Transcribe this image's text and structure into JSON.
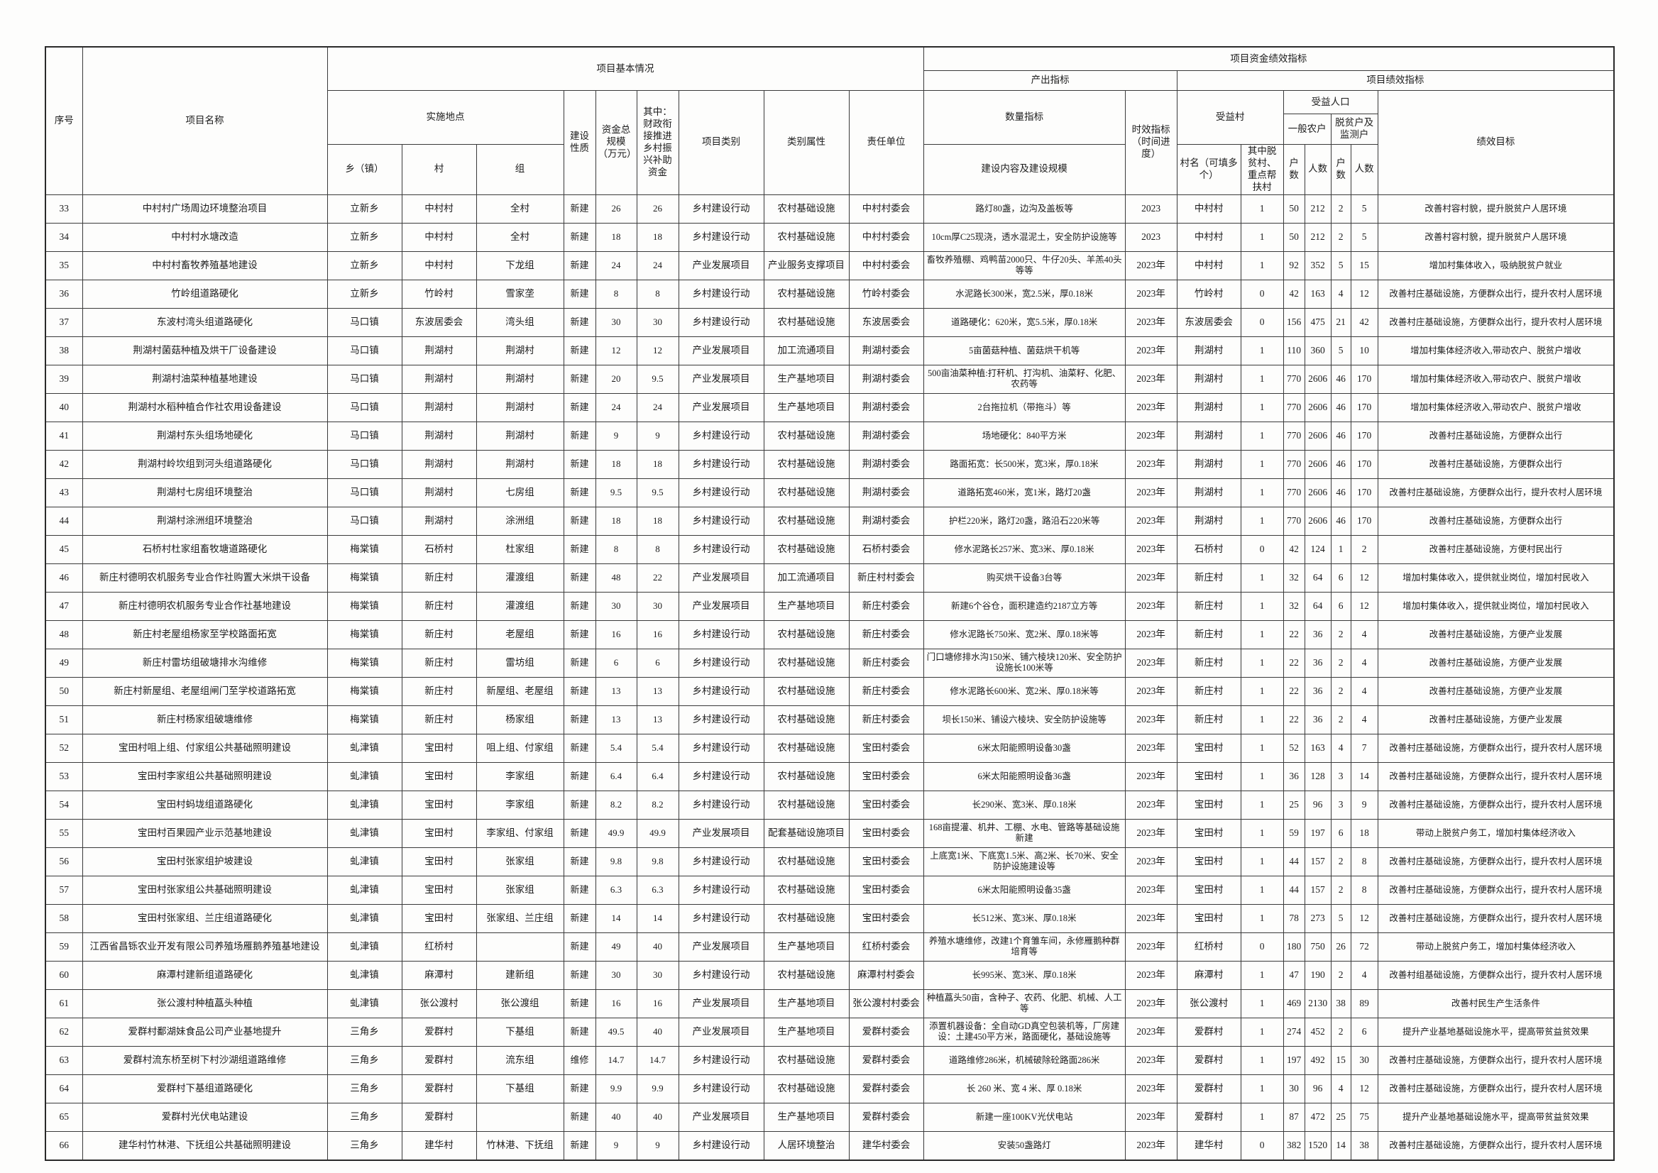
{
  "header": {
    "seq": "序号",
    "project_name": "项目名称",
    "basic_info": "项目基本情况",
    "fund_perf": "项目资金绩效指标",
    "output_ind": "产出指标",
    "perf_ind": "项目绩效指标",
    "location": "实施地点",
    "build_nature": "建设性质",
    "total_fund": "资金总规模（万元）",
    "subsidy": "其中：财政衔接推进乡村振兴补助资金",
    "category": "项目类别",
    "attr": "类别属性",
    "resp_unit": "责任单位",
    "qty_ind": "数量指标",
    "time_ind": "时效指标（时间进度）",
    "benefit_village": "受益村",
    "benefit_pop": "受益人口",
    "perf_goal": "绩效目标",
    "general_farmers": "一般农户",
    "poverty_households": "脱贫户及监测户",
    "township": "乡（镇）",
    "village": "村",
    "group": "组",
    "content": "建设内容及建设规模",
    "village_names": "村名（可填多个）",
    "poverty_flag": "其中脱贫村、重点帮扶村",
    "households": "户数",
    "persons": "人数"
  },
  "columns": [
    {
      "key": "seq"
    },
    {
      "key": "project_name"
    },
    {
      "key": "township"
    },
    {
      "key": "village"
    },
    {
      "key": "group"
    },
    {
      "key": "build_nature"
    },
    {
      "key": "total_fund"
    },
    {
      "key": "subsidy"
    },
    {
      "key": "category"
    },
    {
      "key": "attr"
    },
    {
      "key": "resp_unit"
    },
    {
      "key": "content"
    },
    {
      "key": "time_ind"
    },
    {
      "key": "village_names"
    },
    {
      "key": "poverty_flag"
    },
    {
      "key": "general_households"
    },
    {
      "key": "general_persons"
    },
    {
      "key": "poverty_households"
    },
    {
      "key": "poverty_persons"
    },
    {
      "key": "perf_goal"
    }
  ],
  "rows": [
    [
      "33",
      "中村村广场周边环境整治项目",
      "立新乡",
      "中村村",
      "全村",
      "新建",
      "26",
      "26",
      "乡村建设行动",
      "农村基础设施",
      "中村村委会",
      "路灯80盏，边沟及盖板等",
      "2023",
      "中村村",
      "1",
      "50",
      "212",
      "2",
      "5",
      "改善村容村貌，提升脱贫户人居环境"
    ],
    [
      "34",
      "中村村水塘改造",
      "立新乡",
      "中村村",
      "全村",
      "新建",
      "18",
      "18",
      "乡村建设行动",
      "农村基础设施",
      "中村村委会",
      "10cm厚C25现浇，透水混泥土，安全防护设施等",
      "2023",
      "中村村",
      "1",
      "50",
      "212",
      "2",
      "5",
      "改善村容村貌，提升脱贫户人居环境"
    ],
    [
      "35",
      "中村村畜牧养殖基地建设",
      "立新乡",
      "中村村",
      "下龙组",
      "新建",
      "24",
      "24",
      "产业发展项目",
      "产业服务支撑项目",
      "中村村委会",
      "畜牧养殖棚、鸡鸭苗2000只、牛仔20头、羊羔40头等等",
      "2023年",
      "中村村",
      "1",
      "92",
      "352",
      "5",
      "15",
      "增加村集体收入，吸纳脱贫户就业"
    ],
    [
      "36",
      "竹岭组道路硬化",
      "立新乡",
      "竹岭村",
      "雪家垄",
      "新建",
      "8",
      "8",
      "乡村建设行动",
      "农村基础设施",
      "竹岭村委会",
      "水泥路长300米，宽2.5米，厚0.18米",
      "2023年",
      "竹岭村",
      "0",
      "42",
      "163",
      "4",
      "12",
      "改善村庄基础设施，方便群众出行，提升农村人居环境"
    ],
    [
      "37",
      "东波村湾头组道路硬化",
      "马口镇",
      "东波居委会",
      "湾头组",
      "新建",
      "30",
      "30",
      "乡村建设行动",
      "农村基础设施",
      "东波居委会",
      "道路硬化：620米，宽5.5米，厚0.18米",
      "2023年",
      "东波居委会",
      "0",
      "156",
      "475",
      "21",
      "42",
      "改善村庄基础设施，方便群众出行，提升农村人居环境"
    ],
    [
      "38",
      "荆湖村菌菇种植及烘干厂设备建设",
      "马口镇",
      "荆湖村",
      "荆湖村",
      "新建",
      "12",
      "12",
      "产业发展项目",
      "加工流通项目",
      "荆湖村委会",
      "5亩菌菇种植、菌菇烘干机等",
      "2023年",
      "荆湖村",
      "1",
      "110",
      "360",
      "5",
      "10",
      "增加村集体经济收入,带动农户、脱贫户增收"
    ],
    [
      "39",
      "荆湖村油菜种植基地建设",
      "马口镇",
      "荆湖村",
      "荆湖村",
      "新建",
      "20",
      "9.5",
      "产业发展项目",
      "生产基地项目",
      "荆湖村委会",
      "500亩油菜种植:打秆机、打沟机、油菜籽、化肥、农药等",
      "2023年",
      "荆湖村",
      "1",
      "770",
      "2606",
      "46",
      "170",
      "增加村集体经济收入,带动农户、脱贫户增收"
    ],
    [
      "40",
      "荆湖村水稻种植合作社农用设备建设",
      "马口镇",
      "荆湖村",
      "荆湖村",
      "新建",
      "24",
      "24",
      "产业发展项目",
      "生产基地项目",
      "荆湖村委会",
      "2台拖拉机（带拖斗）等",
      "2023年",
      "荆湖村",
      "1",
      "770",
      "2606",
      "46",
      "170",
      "增加村集体经济收入,带动农户、脱贫户增收"
    ],
    [
      "41",
      "荆湖村东头组场地硬化",
      "马口镇",
      "荆湖村",
      "荆湖村",
      "新建",
      "9",
      "9",
      "乡村建设行动",
      "农村基础设施",
      "荆湖村委会",
      "场地硬化：840平方米",
      "2023年",
      "荆湖村",
      "1",
      "770",
      "2606",
      "46",
      "170",
      "改善村庄基础设施，方便群众出行"
    ],
    [
      "42",
      "荆湖村岭坎组到河头组道路硬化",
      "马口镇",
      "荆湖村",
      "荆湖村",
      "新建",
      "18",
      "18",
      "乡村建设行动",
      "农村基础设施",
      "荆湖村委会",
      "路面拓宽：长500米，宽3米，厚0.18米",
      "2023年",
      "荆湖村",
      "1",
      "770",
      "2606",
      "46",
      "170",
      "改善村庄基础设施，方便群众出行"
    ],
    [
      "43",
      "荆湖村七房组环境整治",
      "马口镇",
      "荆湖村",
      "七房组",
      "新建",
      "9.5",
      "9.5",
      "乡村建设行动",
      "农村基础设施",
      "荆湖村委会",
      "道路拓宽460米，宽1米，路灯20盏",
      "2023年",
      "荆湖村",
      "1",
      "770",
      "2606",
      "46",
      "170",
      "改善村庄基础设施，方便群众出行，提升农村人居环境"
    ],
    [
      "44",
      "荆湖村涂洲组环境整治",
      "马口镇",
      "荆湖村",
      "涂洲组",
      "新建",
      "18",
      "18",
      "乡村建设行动",
      "农村基础设施",
      "荆湖村委会",
      "护栏220米，路灯20盏，路沿石220米等",
      "2023年",
      "荆湖村",
      "1",
      "770",
      "2606",
      "46",
      "170",
      "改善村庄基础设施，方便群众出行"
    ],
    [
      "45",
      "石桥村杜家组畜牧塘道路硬化",
      "梅棠镇",
      "石桥村",
      "杜家组",
      "新建",
      "8",
      "8",
      "乡村建设行动",
      "农村基础设施",
      "石桥村委会",
      "修水泥路长257米、宽3米、厚0.18米",
      "2023年",
      "石桥村",
      "0",
      "42",
      "124",
      "1",
      "2",
      "改善村庄基础设施，方便村民出行"
    ],
    [
      "46",
      "新庄村德明农机服务专业合作社购置大米烘干设备",
      "梅棠镇",
      "新庄村",
      "灌渡组",
      "新建",
      "48",
      "22",
      "产业发展项目",
      "加工流通项目",
      "新庄村村委会",
      "购买烘干设备3台等",
      "2023年",
      "新庄村",
      "1",
      "32",
      "64",
      "6",
      "12",
      "增加村集体收入，提供就业岗位，增加村民收入"
    ],
    [
      "47",
      "新庄村德明农机服务专业合作社基地建设",
      "梅棠镇",
      "新庄村",
      "灌渡组",
      "新建",
      "30",
      "30",
      "产业发展项目",
      "生产基地项目",
      "新庄村委会",
      "新建6个谷仓，面积建造约2187立方等",
      "2023年",
      "新庄村",
      "1",
      "32",
      "64",
      "6",
      "12",
      "增加村集体收入，提供就业岗位，增加村民收入"
    ],
    [
      "48",
      "新庄村老屋组杨家至学校路面拓宽",
      "梅棠镇",
      "新庄村",
      "老屋组",
      "新建",
      "16",
      "16",
      "乡村建设行动",
      "农村基础设施",
      "新庄村委会",
      "修水泥路长750米、宽2米、厚0.18米等",
      "2023年",
      "新庄村",
      "1",
      "22",
      "36",
      "2",
      "4",
      "改善村庄基础设施，方便产业发展"
    ],
    [
      "49",
      "新庄村雷坊组破塘排水沟维修",
      "梅棠镇",
      "新庄村",
      "雷坊组",
      "新建",
      "6",
      "6",
      "乡村建设行动",
      "农村基础设施",
      "新庄村委会",
      "门口塘修排水沟150米、铺六棱块120米、安全防护设施长100米等",
      "2023年",
      "新庄村",
      "1",
      "22",
      "36",
      "2",
      "4",
      "改善村庄基础设施，方便产业发展"
    ],
    [
      "50",
      "新庄村新屋组、老屋组闸门至学校道路拓宽",
      "梅棠镇",
      "新庄村",
      "新屋组、老屋组",
      "新建",
      "13",
      "13",
      "乡村建设行动",
      "农村基础设施",
      "新庄村委会",
      "修水泥路长600米、宽2米、厚0.18米等",
      "2023年",
      "新庄村",
      "1",
      "22",
      "36",
      "2",
      "4",
      "改善村庄基础设施，方便产业发展"
    ],
    [
      "51",
      "新庄村杨家组破塘维修",
      "梅棠镇",
      "新庄村",
      "杨家组",
      "新建",
      "13",
      "13",
      "乡村建设行动",
      "农村基础设施",
      "新庄村委会",
      "坝长150米、铺设六棱块、安全防护设施等",
      "2023年",
      "新庄村",
      "1",
      "22",
      "36",
      "2",
      "4",
      "改善村庄基础设施，方便产业发展"
    ],
    [
      "52",
      "宝田村咀上组、付家组公共基础照明建设",
      "虬津镇",
      "宝田村",
      "咀上组、付家组",
      "新建",
      "5.4",
      "5.4",
      "乡村建设行动",
      "农村基础设施",
      "宝田村委会",
      "6米太阳能照明设备30盏",
      "2023年",
      "宝田村",
      "1",
      "52",
      "163",
      "4",
      "7",
      "改善村庄基础设施，方便群众出行，提升农村人居环境"
    ],
    [
      "53",
      "宝田村李家组公共基础照明建设",
      "虬津镇",
      "宝田村",
      "李家组",
      "新建",
      "6.4",
      "6.4",
      "乡村建设行动",
      "农村基础设施",
      "宝田村委会",
      "6米太阳能照明设备36盏",
      "2023年",
      "宝田村",
      "1",
      "36",
      "128",
      "3",
      "14",
      "改善村庄基础设施，方便群众出行，提升农村人居环境"
    ],
    [
      "54",
      "宝田村蚂垅组道路硬化",
      "虬津镇",
      "宝田村",
      "李家组",
      "新建",
      "8.2",
      "8.2",
      "乡村建设行动",
      "农村基础设施",
      "宝田村委会",
      "长290米、宽3米、厚0.18米",
      "2023年",
      "宝田村",
      "1",
      "25",
      "96",
      "3",
      "9",
      "改善村庄基础设施，方便群众出行，提升农村人居环境"
    ],
    [
      "55",
      "宝田村百果园产业示范基地建设",
      "虬津镇",
      "宝田村",
      "李家组、付家组",
      "新建",
      "49.9",
      "49.9",
      "产业发展项目",
      "配套基础设施项目",
      "宝田村委会",
      "168亩提灌、机井、工棚、水电、管路等基础设施新建",
      "2023年",
      "宝田村",
      "1",
      "59",
      "197",
      "6",
      "18",
      "带动上脱贫户务工，增加村集体经济收入"
    ],
    [
      "56",
      "宝田村张家组护坡建设",
      "虬津镇",
      "宝田村",
      "张家组",
      "新建",
      "9.8",
      "9.8",
      "乡村建设行动",
      "农村基础设施",
      "宝田村委会",
      "上底宽1米、下底宽1.5米、高2米、长70米、安全防护设施建设等",
      "2023年",
      "宝田村",
      "1",
      "44",
      "157",
      "2",
      "8",
      "改善村庄基础设施，方便群众出行，提升农村人居环境"
    ],
    [
      "57",
      "宝田村张家组公共基础照明建设",
      "虬津镇",
      "宝田村",
      "张家组",
      "新建",
      "6.3",
      "6.3",
      "乡村建设行动",
      "农村基础设施",
      "宝田村委会",
      "6米太阳能照明设备35盏",
      "2023年",
      "宝田村",
      "1",
      "44",
      "157",
      "2",
      "8",
      "改善村庄基础设施，方便群众出行，提升农村人居环境"
    ],
    [
      "58",
      "宝田村张家组、兰庄组道路硬化",
      "虬津镇",
      "宝田村",
      "张家组、兰庄组",
      "新建",
      "14",
      "14",
      "乡村建设行动",
      "农村基础设施",
      "宝田村委会",
      "长512米、宽3米、厚0.18米",
      "2023年",
      "宝田村",
      "1",
      "78",
      "273",
      "5",
      "12",
      "改善村庄基础设施，方便群众出行，提升农村人居环境"
    ],
    [
      "59",
      "江西省昌铄农业开发有限公司养殖场雁鹅养殖基地建设",
      "虬津镇",
      "红桥村",
      "",
      "新建",
      "49",
      "40",
      "产业发展项目",
      "生产基地项目",
      "红桥村委会",
      "养殖水塘维修，改建1个育雏车间，永修雁鹅种群培育等",
      "2023年",
      "红桥村",
      "0",
      "180",
      "750",
      "26",
      "72",
      "带动上脱贫户务工，增加村集体经济收入"
    ],
    [
      "60",
      "麻潭村建新组道路硬化",
      "虬津镇",
      "麻潭村",
      "建新组",
      "新建",
      "30",
      "30",
      "乡村建设行动",
      "农村基础设施",
      "麻潭村村委会",
      "长995米、宽3米、厚0.18米",
      "2023年",
      "麻潭村",
      "1",
      "47",
      "190",
      "2",
      "4",
      "改善村组基础设施，方便群众出行，提升农村人居环境"
    ],
    [
      "61",
      "张公渡村种植藠头种植",
      "虬津镇",
      "张公渡村",
      "张公渡组",
      "新建",
      "16",
      "16",
      "产业发展项目",
      "生产基地项目",
      "张公渡村村委会",
      "种植藠头50亩，含种子、农药、化肥、机械、人工等",
      "2023年",
      "张公渡村",
      "1",
      "469",
      "2130",
      "38",
      "89",
      "改善村民生产生活条件"
    ],
    [
      "62",
      "爱群村鄱湖妹食品公司产业基地提升",
      "三角乡",
      "爱群村",
      "下基组",
      "新建",
      "49.5",
      "40",
      "产业发展项目",
      "生产基地项目",
      "爱群村委会",
      "添置机器设备：全自动GD真空包装机等，厂房建设：土建450平方米，路面硬化，基础设施等",
      "2023年",
      "爱群村",
      "1",
      "274",
      "452",
      "2",
      "6",
      "提升产业基地基础设施水平，提高带贫益贫效果"
    ],
    [
      "63",
      "爱群村流东桥至树下村沙湖组道路维修",
      "三角乡",
      "爱群村",
      "流东组",
      "维修",
      "14.7",
      "14.7",
      "乡村建设行动",
      "农村基础设施",
      "爱群村委会",
      "道路维修286米，机械破除砼路面286米",
      "2023年",
      "爱群村",
      "1",
      "197",
      "492",
      "15",
      "30",
      "改善村庄基础设施，方便群众出行，提升农村人居环境"
    ],
    [
      "64",
      "爱群村下基组道路硬化",
      "三角乡",
      "爱群村",
      "下基组",
      "新建",
      "9.9",
      "9.9",
      "乡村建设行动",
      "农村基础设施",
      "爱群村委会",
      "长 260 米、宽 4 米、厚 0.18米",
      "2023年",
      "爱群村",
      "1",
      "30",
      "96",
      "4",
      "12",
      "改善村庄基础设施，方便群众出行，提升农村人居环境"
    ],
    [
      "65",
      "爱群村光伏电站建设",
      "三角乡",
      "爱群村",
      "",
      "新建",
      "40",
      "40",
      "产业发展项目",
      "生产基地项目",
      "爱群村委会",
      "新建一座100KV光伏电站",
      "2023年",
      "爱群村",
      "1",
      "87",
      "472",
      "25",
      "75",
      "提升产业基地基础设施水平，提高带贫益贫效果"
    ],
    [
      "66",
      "建华村竹林港、下抚组公共基础照明建设",
      "三角乡",
      "建华村",
      "竹林港、下抚组",
      "新建",
      "9",
      "9",
      "乡村建设行动",
      "人居环境整治",
      "建华村委会",
      "安装50盏路灯",
      "2023年",
      "建华村",
      "0",
      "382",
      "1520",
      "14",
      "38",
      "改善村庄基础设施，方便群众出行，提升农村人居环境"
    ]
  ]
}
